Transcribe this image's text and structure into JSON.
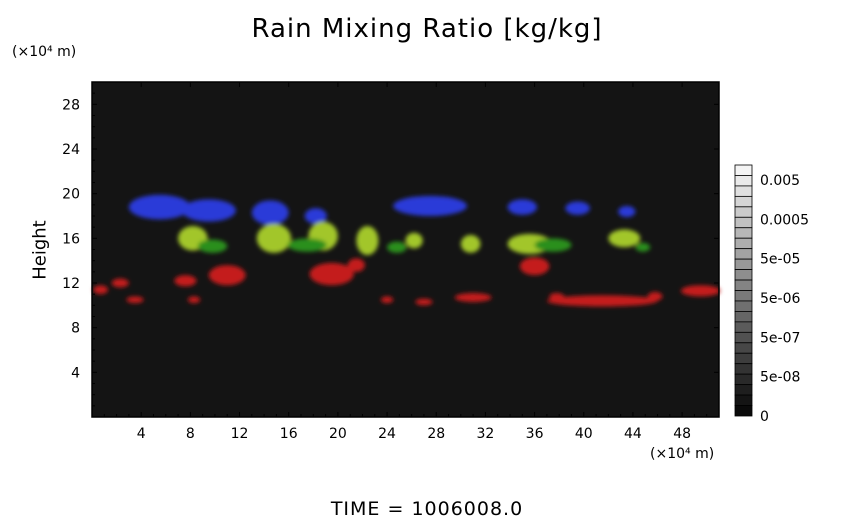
{
  "chart_data": {
    "type": "heatmap",
    "title": "Rain Mixing Ratio [kg/kg]",
    "xlabel": "",
    "ylabel": "Height",
    "x_unit": "(×10⁴ m)",
    "y_unit": "(×10⁴ m)",
    "xlim": [
      0,
      51
    ],
    "ylim": [
      0,
      30
    ],
    "x_ticks": [
      "4",
      "8",
      "12",
      "16",
      "20",
      "24",
      "28",
      "32",
      "36",
      "40",
      "44",
      "48"
    ],
    "x_tick_values": [
      4,
      8,
      12,
      16,
      20,
      24,
      28,
      32,
      36,
      40,
      44,
      48
    ],
    "y_ticks": [
      "4",
      "8",
      "12",
      "16",
      "20",
      "24",
      "28"
    ],
    "y_tick_values": [
      4,
      8,
      12,
      16,
      20,
      24,
      28
    ],
    "background_color": "#141414",
    "colorbar": {
      "labels": [
        "0.005",
        "0.0005",
        "5e-05",
        "5e-06",
        "5e-07",
        "5e-08",
        "0"
      ],
      "levels": 24,
      "color_top": "#f4f4f4",
      "color_bottom": "#0a0a0a"
    },
    "regions": [
      {
        "name": "blue",
        "color": "#2b3ad8",
        "x": 5.5,
        "y": 18.8,
        "rx": 2.5,
        "ry": 1.1
      },
      {
        "name": "blue",
        "color": "#2b3ad8",
        "x": 9.5,
        "y": 18.5,
        "rx": 2.2,
        "ry": 1.0
      },
      {
        "name": "blue",
        "color": "#2b3ad8",
        "x": 14.5,
        "y": 18.3,
        "rx": 1.5,
        "ry": 1.1
      },
      {
        "name": "blue",
        "color": "#2b3ad8",
        "x": 18.2,
        "y": 18.0,
        "rx": 0.9,
        "ry": 0.7
      },
      {
        "name": "blue",
        "color": "#2b3ad8",
        "x": 27.5,
        "y": 18.9,
        "rx": 3.0,
        "ry": 0.9
      },
      {
        "name": "blue",
        "color": "#2b3ad8",
        "x": 35.0,
        "y": 18.8,
        "rx": 1.2,
        "ry": 0.7
      },
      {
        "name": "blue",
        "color": "#2b3ad8",
        "x": 39.5,
        "y": 18.7,
        "rx": 1.0,
        "ry": 0.6
      },
      {
        "name": "blue",
        "color": "#2b3ad8",
        "x": 43.5,
        "y": 18.4,
        "rx": 0.7,
        "ry": 0.5
      },
      {
        "name": "yellow-green",
        "color": "#a2c62a",
        "x": 8.2,
        "y": 16.0,
        "rx": 1.2,
        "ry": 1.1
      },
      {
        "name": "yellow-green",
        "color": "#a2c62a",
        "x": 14.8,
        "y": 16.0,
        "rx": 1.4,
        "ry": 1.3
      },
      {
        "name": "yellow-green",
        "color": "#a2c62a",
        "x": 18.8,
        "y": 16.2,
        "rx": 1.2,
        "ry": 1.3
      },
      {
        "name": "yellow-green",
        "color": "#a2c62a",
        "x": 22.4,
        "y": 15.8,
        "rx": 0.9,
        "ry": 1.3
      },
      {
        "name": "yellow-green",
        "color": "#a2c62a",
        "x": 26.2,
        "y": 15.8,
        "rx": 0.7,
        "ry": 0.7
      },
      {
        "name": "yellow-green",
        "color": "#a2c62a",
        "x": 30.8,
        "y": 15.5,
        "rx": 0.8,
        "ry": 0.8
      },
      {
        "name": "yellow-green",
        "color": "#a2c62a",
        "x": 35.6,
        "y": 15.5,
        "rx": 1.8,
        "ry": 0.9
      },
      {
        "name": "yellow-green",
        "color": "#a2c62a",
        "x": 43.3,
        "y": 16.0,
        "rx": 1.3,
        "ry": 0.8
      },
      {
        "name": "green",
        "color": "#2c8f1f",
        "x": 9.8,
        "y": 15.3,
        "rx": 1.2,
        "ry": 0.6
      },
      {
        "name": "green",
        "color": "#2c8f1f",
        "x": 17.5,
        "y": 15.4,
        "rx": 1.6,
        "ry": 0.6
      },
      {
        "name": "green",
        "color": "#2c8f1f",
        "x": 24.8,
        "y": 15.2,
        "rx": 0.8,
        "ry": 0.5
      },
      {
        "name": "green",
        "color": "#2c8f1f",
        "x": 37.5,
        "y": 15.4,
        "rx": 1.5,
        "ry": 0.6
      },
      {
        "name": "green",
        "color": "#2c8f1f",
        "x": 44.8,
        "y": 15.2,
        "rx": 0.6,
        "ry": 0.4
      },
      {
        "name": "red",
        "color": "#c41d1d",
        "x": 19.5,
        "y": 12.8,
        "rx": 1.8,
        "ry": 1.0
      },
      {
        "name": "red",
        "color": "#c41d1d",
        "x": 11.0,
        "y": 12.7,
        "rx": 1.5,
        "ry": 0.9
      },
      {
        "name": "red",
        "color": "#c41d1d",
        "x": 21.5,
        "y": 13.6,
        "rx": 0.7,
        "ry": 0.6
      },
      {
        "name": "red",
        "color": "#c41d1d",
        "x": 7.6,
        "y": 12.2,
        "rx": 0.9,
        "ry": 0.5
      },
      {
        "name": "red",
        "color": "#c41d1d",
        "x": 36.0,
        "y": 13.5,
        "rx": 1.2,
        "ry": 0.8
      },
      {
        "name": "red",
        "color": "#c41d1d",
        "x": 2.3,
        "y": 12.0,
        "rx": 0.7,
        "ry": 0.4
      },
      {
        "name": "red",
        "color": "#c41d1d",
        "x": 0.7,
        "y": 11.4,
        "rx": 0.6,
        "ry": 0.4
      },
      {
        "name": "red",
        "color": "#c41d1d",
        "x": 3.5,
        "y": 10.5,
        "rx": 0.7,
        "ry": 0.3
      },
      {
        "name": "red",
        "color": "#c41d1d",
        "x": 8.3,
        "y": 10.5,
        "rx": 0.5,
        "ry": 0.3
      },
      {
        "name": "red",
        "color": "#c41d1d",
        "x": 24.0,
        "y": 10.5,
        "rx": 0.5,
        "ry": 0.3
      },
      {
        "name": "red",
        "color": "#c41d1d",
        "x": 27.0,
        "y": 10.3,
        "rx": 0.7,
        "ry": 0.3
      },
      {
        "name": "red",
        "color": "#c41d1d",
        "x": 31.0,
        "y": 10.7,
        "rx": 1.5,
        "ry": 0.4
      },
      {
        "name": "red",
        "color": "#c41d1d",
        "x": 41.5,
        "y": 10.4,
        "rx": 4.5,
        "ry": 0.5
      },
      {
        "name": "red",
        "color": "#c41d1d",
        "x": 45.8,
        "y": 10.8,
        "rx": 0.6,
        "ry": 0.4
      },
      {
        "name": "red",
        "color": "#c41d1d",
        "x": 49.5,
        "y": 11.3,
        "rx": 1.6,
        "ry": 0.5
      },
      {
        "name": "red",
        "color": "#c41d1d",
        "x": 37.8,
        "y": 10.8,
        "rx": 0.6,
        "ry": 0.3
      }
    ]
  },
  "footer": {
    "time_label": "TIME",
    "time_sep": "=",
    "time_value": "1006008.0"
  }
}
